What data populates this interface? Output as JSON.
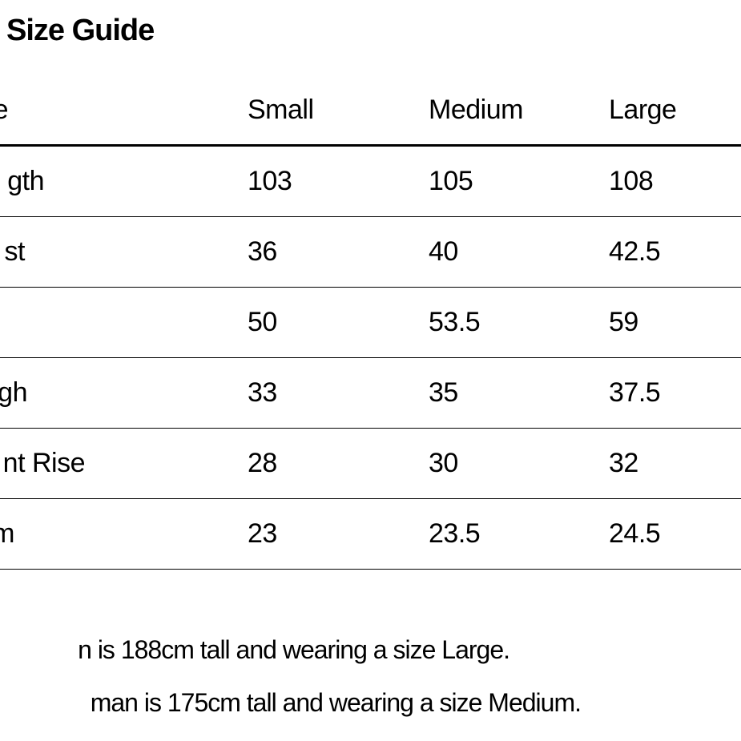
{
  "title": "Size Guide",
  "table": {
    "columns": [
      "e",
      "Small",
      "Medium",
      "Large"
    ],
    "rows": [
      {
        "label": "gth",
        "small": "103",
        "medium": "105",
        "large": "108"
      },
      {
        "label": "st",
        "small": "36",
        "medium": "40",
        "large": "42.5"
      },
      {
        "label": "",
        "small": "50",
        "medium": "53.5",
        "large": "59"
      },
      {
        "label": "gh",
        "small": "33",
        "medium": "35",
        "large": "37.5"
      },
      {
        "label": "nt Rise",
        "small": "28",
        "medium": "30",
        "large": "32"
      },
      {
        "label": "m",
        "small": "23",
        "medium": "23.5",
        "large": "24.5"
      }
    ]
  },
  "notes": [
    "n is 188cm tall and wearing a size Large.",
    "man is 175cm tall and wearing a size Medium."
  ]
}
